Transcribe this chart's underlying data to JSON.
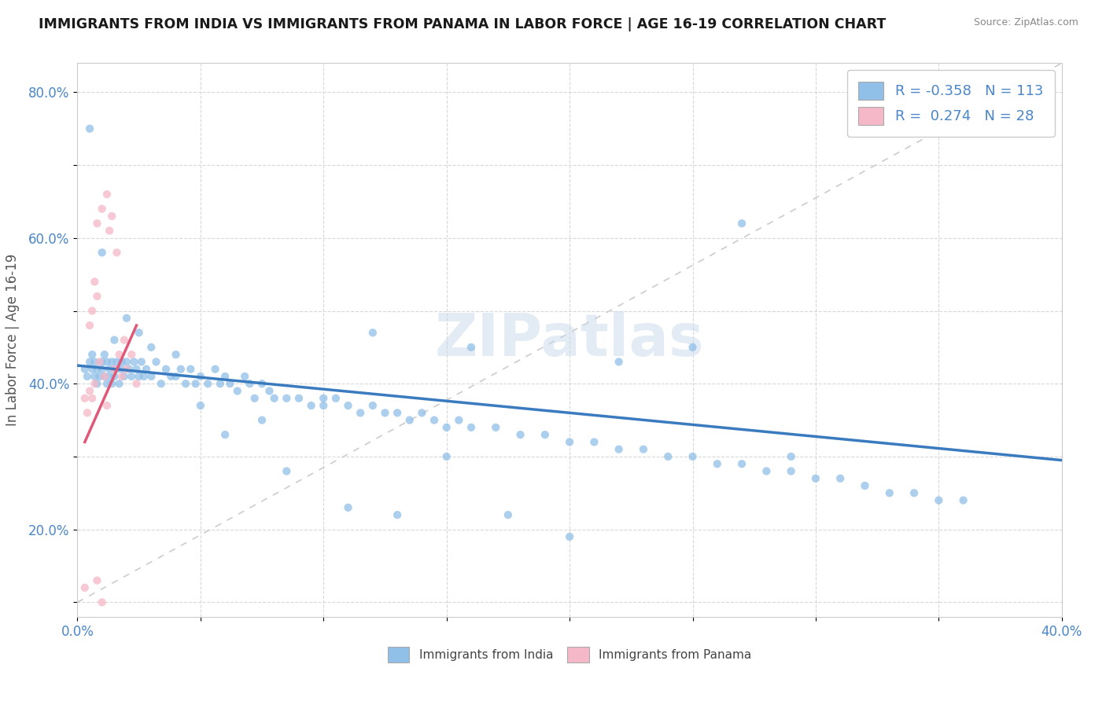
{
  "title": "IMMIGRANTS FROM INDIA VS IMMIGRANTS FROM PANAMA IN LABOR FORCE | AGE 16-19 CORRELATION CHART",
  "source": "Source: ZipAtlas.com",
  "ylabel": "In Labor Force | Age 16-19",
  "xlim": [
    0.0,
    0.4
  ],
  "ylim": [
    0.08,
    0.84
  ],
  "xticks": [
    0.0,
    0.05,
    0.1,
    0.15,
    0.2,
    0.25,
    0.3,
    0.35,
    0.4
  ],
  "yticks": [
    0.1,
    0.2,
    0.3,
    0.4,
    0.5,
    0.6,
    0.7,
    0.8
  ],
  "india_color": "#90bfe8",
  "panama_color": "#f5b8c8",
  "india_line_color": "#3a7bbf",
  "panama_line_color": "#e05878",
  "ref_line_color": "#cccccc",
  "legend_india_R": "-0.358",
  "legend_india_N": "113",
  "legend_panama_R": "0.274",
  "legend_panama_N": "28",
  "watermark": "ZIPatlas",
  "india_x": [
    0.003,
    0.004,
    0.005,
    0.006,
    0.006,
    0.007,
    0.007,
    0.008,
    0.008,
    0.009,
    0.01,
    0.01,
    0.011,
    0.011,
    0.012,
    0.012,
    0.013,
    0.013,
    0.014,
    0.014,
    0.015,
    0.015,
    0.016,
    0.016,
    0.017,
    0.018,
    0.018,
    0.019,
    0.02,
    0.021,
    0.022,
    0.023,
    0.024,
    0.025,
    0.026,
    0.027,
    0.028,
    0.03,
    0.032,
    0.034,
    0.036,
    0.038,
    0.04,
    0.042,
    0.044,
    0.046,
    0.048,
    0.05,
    0.053,
    0.056,
    0.058,
    0.06,
    0.062,
    0.065,
    0.068,
    0.07,
    0.072,
    0.075,
    0.078,
    0.08,
    0.085,
    0.09,
    0.095,
    0.1,
    0.105,
    0.11,
    0.115,
    0.12,
    0.125,
    0.13,
    0.135,
    0.14,
    0.145,
    0.15,
    0.155,
    0.16,
    0.17,
    0.18,
    0.19,
    0.2,
    0.21,
    0.22,
    0.23,
    0.24,
    0.25,
    0.26,
    0.27,
    0.28,
    0.29,
    0.3,
    0.31,
    0.32,
    0.33,
    0.34,
    0.35,
    0.36,
    0.12,
    0.16,
    0.22,
    0.25,
    0.27,
    0.29,
    0.005,
    0.01,
    0.015,
    0.02,
    0.025,
    0.03,
    0.04,
    0.05,
    0.06,
    0.075,
    0.085,
    0.1,
    0.11,
    0.13,
    0.15,
    0.175,
    0.2
  ],
  "india_y": [
    0.42,
    0.41,
    0.43,
    0.42,
    0.44,
    0.41,
    0.43,
    0.4,
    0.42,
    0.41,
    0.43,
    0.42,
    0.41,
    0.44,
    0.4,
    0.43,
    0.42,
    0.41,
    0.43,
    0.4,
    0.42,
    0.41,
    0.43,
    0.42,
    0.4,
    0.43,
    0.42,
    0.41,
    0.43,
    0.42,
    0.41,
    0.43,
    0.42,
    0.41,
    0.43,
    0.41,
    0.42,
    0.41,
    0.43,
    0.4,
    0.42,
    0.41,
    0.41,
    0.42,
    0.4,
    0.42,
    0.4,
    0.41,
    0.4,
    0.42,
    0.4,
    0.41,
    0.4,
    0.39,
    0.41,
    0.4,
    0.38,
    0.4,
    0.39,
    0.38,
    0.38,
    0.38,
    0.37,
    0.37,
    0.38,
    0.37,
    0.36,
    0.37,
    0.36,
    0.36,
    0.35,
    0.36,
    0.35,
    0.34,
    0.35,
    0.34,
    0.34,
    0.33,
    0.33,
    0.32,
    0.32,
    0.31,
    0.31,
    0.3,
    0.3,
    0.29,
    0.29,
    0.28,
    0.28,
    0.27,
    0.27,
    0.26,
    0.25,
    0.25,
    0.24,
    0.24,
    0.47,
    0.45,
    0.43,
    0.45,
    0.62,
    0.3,
    0.75,
    0.58,
    0.46,
    0.49,
    0.47,
    0.45,
    0.44,
    0.37,
    0.33,
    0.35,
    0.28,
    0.38,
    0.23,
    0.22,
    0.3,
    0.22,
    0.19
  ],
  "panama_x": [
    0.003,
    0.004,
    0.005,
    0.006,
    0.007,
    0.008,
    0.009,
    0.01,
    0.011,
    0.012,
    0.013,
    0.014,
    0.015,
    0.016,
    0.017,
    0.018,
    0.019,
    0.02,
    0.022,
    0.024,
    0.008,
    0.01,
    0.012,
    0.008,
    0.005,
    0.006,
    0.007,
    0.003
  ],
  "panama_y": [
    0.38,
    0.36,
    0.39,
    0.38,
    0.4,
    0.62,
    0.43,
    0.64,
    0.41,
    0.66,
    0.61,
    0.63,
    0.42,
    0.58,
    0.44,
    0.41,
    0.46,
    0.42,
    0.44,
    0.4,
    0.13,
    0.1,
    0.37,
    0.52,
    0.48,
    0.5,
    0.54,
    0.12
  ],
  "india_trend_x": [
    0.0,
    0.4
  ],
  "india_trend_y": [
    0.425,
    0.295
  ],
  "panama_trend_x": [
    0.003,
    0.024
  ],
  "panama_trend_y": [
    0.32,
    0.48
  ]
}
